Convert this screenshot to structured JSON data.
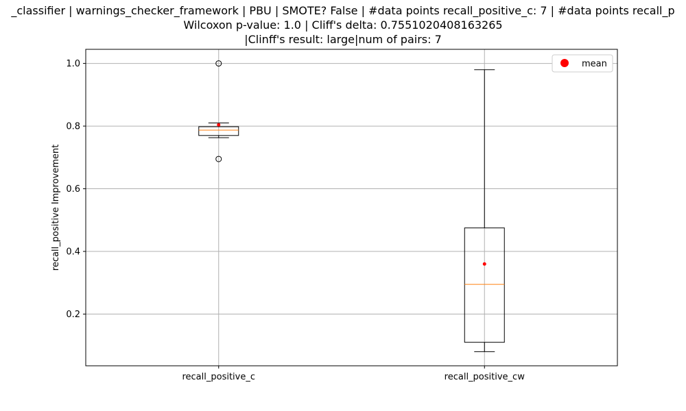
{
  "chart_data": {
    "type": "box",
    "title_lines": [
      "_classifier | warnings_checker_framework | PBU | SMOTE? False | #data points recall_positive_c: 7 | #data points recall_p",
      "Wilcoxon p-value: 1.0 | Cliff's delta: 0.7551020408163265",
      "|Clinff's result: large|num of pairs: 7"
    ],
    "ylabel": "recall_positive Improvement",
    "ylim": [
      0.035,
      1.045
    ],
    "yticks": [
      0.2,
      0.4,
      0.6,
      0.8,
      1.0
    ],
    "ytick_labels": [
      "0.2",
      "0.4",
      "0.6",
      "0.8",
      "1.0"
    ],
    "grid": true,
    "legend": {
      "placement": "top-right",
      "label": "mean",
      "marker_color": "#ff0000"
    },
    "colors": {
      "box": "#000000",
      "median": "#ff7f0e",
      "mean": "#ff0000",
      "grid": "#b0b0b0"
    },
    "categories": [
      "recall_positive_c",
      "recall_positive_cw"
    ],
    "boxes": [
      {
        "label": "recall_positive_c",
        "whisker_low": 0.763,
        "q1": 0.77,
        "median": 0.787,
        "q3": 0.798,
        "whisker_high": 0.81,
        "mean": 0.804,
        "outliers": [
          1.0,
          0.695
        ]
      },
      {
        "label": "recall_positive_cw",
        "whisker_low": 0.08,
        "q1": 0.11,
        "median": 0.295,
        "q3": 0.475,
        "whisker_high": 0.98,
        "mean": 0.36,
        "outliers": []
      }
    ]
  }
}
